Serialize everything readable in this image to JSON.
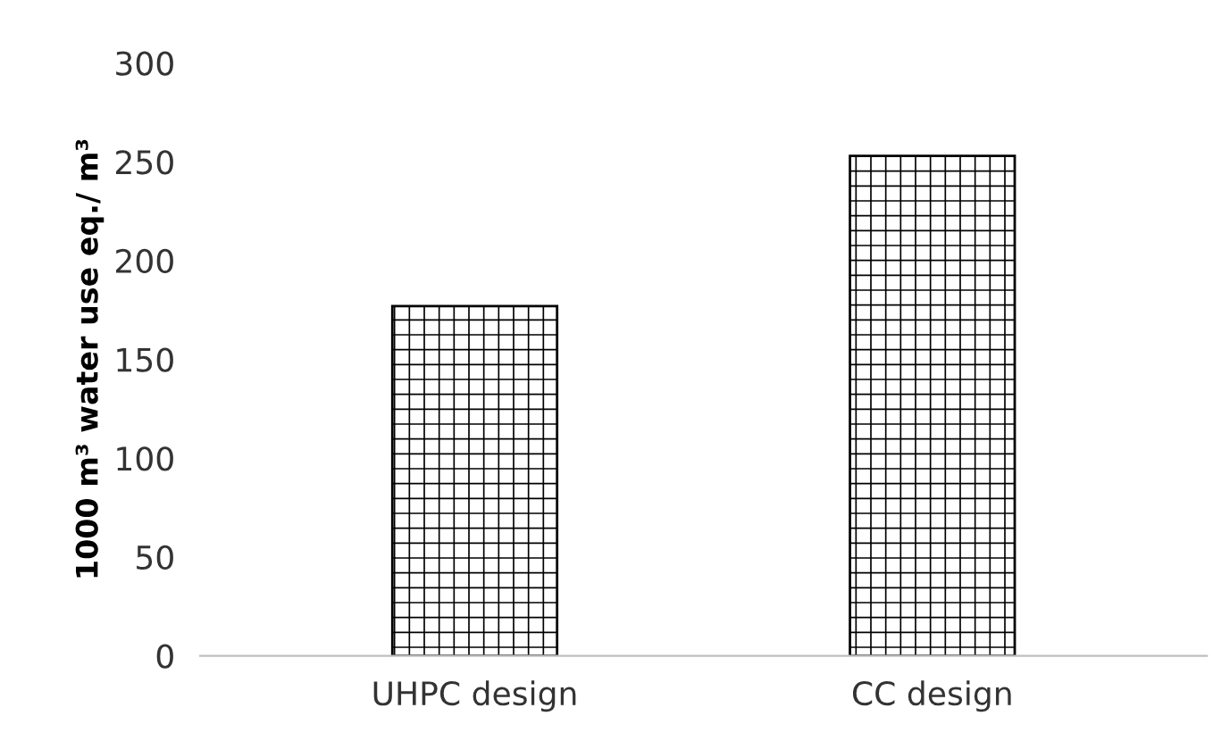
{
  "chart_data": {
    "type": "bar",
    "ylabel": "1000 m³ water use eq./ m³",
    "categories": [
      "UHPC design",
      "CC design"
    ],
    "values": [
      177,
      253
    ],
    "color": "#000000",
    "ylim": [
      0,
      300
    ],
    "yticks": [
      0,
      50,
      100,
      150,
      200,
      250,
      300
    ],
    "grid": false
  }
}
